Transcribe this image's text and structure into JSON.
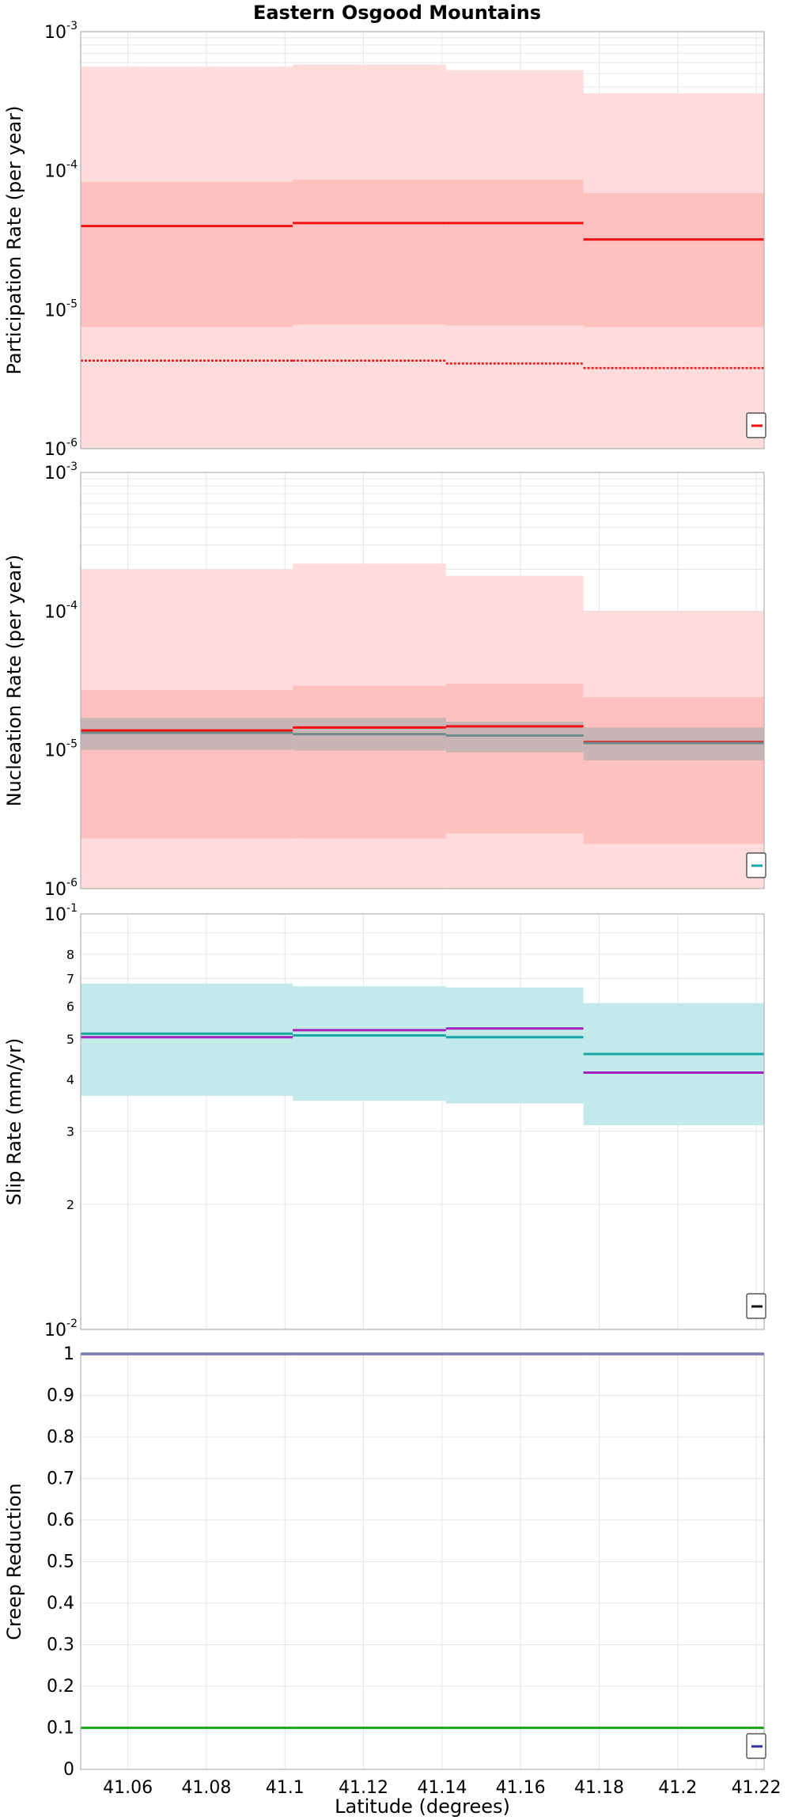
{
  "title": "Eastern Osgood Mountains",
  "xlabel": "Latitude (degrees)",
  "x_ticks": [
    "41.06",
    "41.08",
    "41.1",
    "41.12",
    "41.14",
    "41.16",
    "41.18",
    "41.2",
    "41.22"
  ],
  "colors": {
    "red": "#ee1111",
    "band_light": "#ffdcdc",
    "band_mid": "#ffc0c0",
    "band_gray": "#c8b4b4",
    "gray_line": "#6e8a8a",
    "teal": "#1aa6a6",
    "teal_band": "#c2eaea",
    "purple": "#a020c0",
    "blue": "#3030a0",
    "green": "#1aaa1a",
    "grid": "#e6e6e6"
  },
  "chart_data": [
    {
      "type": "line",
      "name": "participation",
      "title": "Eastern Osgood Mountains",
      "xlabel": "",
      "ylabel": "Participation Rate (per year)",
      "yscale": "log",
      "xlim": [
        41.048,
        41.222
      ],
      "ylim": [
        1e-06,
        0.001
      ],
      "y_tick_exponents": [
        "-3",
        "-4",
        "-5",
        "-6"
      ],
      "x_edges": [
        41.048,
        41.102,
        41.141,
        41.176,
        41.222
      ],
      "bands": [
        {
          "color": "band_light",
          "lower": [
            1e-06,
            1e-06,
            1e-06,
            1e-06
          ],
          "upper": [
            0.00056,
            0.00058,
            0.00053,
            0.00036
          ]
        },
        {
          "color": "band_mid",
          "lower": [
            7.5e-06,
            7.8e-06,
            7.7e-06,
            7.5e-06
          ],
          "upper": [
            8.3e-05,
            8.6e-05,
            8.6e-05,
            6.9e-05
          ]
        }
      ],
      "series": [
        {
          "color": "red",
          "style": "solid",
          "values": [
            4e-05,
            4.2e-05,
            4.2e-05,
            3.2e-05
          ]
        },
        {
          "color": "red",
          "style": "dotted",
          "values": [
            4.3e-06,
            4.3e-06,
            4.1e-06,
            3.8e-06
          ]
        }
      ],
      "legend": "bottom-right",
      "grid": true
    },
    {
      "type": "line",
      "name": "nucleation",
      "xlabel": "",
      "ylabel": "Nucleation Rate (per year)",
      "yscale": "log",
      "xlim": [
        41.048,
        41.222
      ],
      "ylim": [
        1e-06,
        0.001
      ],
      "y_tick_exponents": [
        "-3",
        "-4",
        "-5",
        "-6"
      ],
      "x_edges": [
        41.048,
        41.102,
        41.141,
        41.176,
        41.222
      ],
      "bands": [
        {
          "color": "band_light",
          "lower": [
            1e-06,
            1e-06,
            1e-06,
            1e-06
          ],
          "upper": [
            0.0002,
            0.00022,
            0.00018,
            0.0001
          ]
        },
        {
          "color": "band_mid",
          "lower": [
            2.3e-06,
            2.3e-06,
            2.5e-06,
            2.1e-06
          ],
          "upper": [
            2.7e-05,
            2.9e-05,
            3e-05,
            2.4e-05
          ]
        },
        {
          "color": "band_gray",
          "lower": [
            1e-05,
            9.9e-06,
            9.6e-06,
            8.4e-06
          ],
          "upper": [
            1.7e-05,
            1.7e-05,
            1.6e-05,
            1.45e-05
          ]
        }
      ],
      "series": [
        {
          "color": "red",
          "style": "solid",
          "values": [
            1.38e-05,
            1.45e-05,
            1.48e-05,
            1.14e-05
          ]
        },
        {
          "color": "gray_line",
          "style": "solid",
          "values": [
            1.33e-05,
            1.3e-05,
            1.27e-05,
            1.12e-05
          ]
        }
      ],
      "legend": "bottom-right",
      "grid": true
    },
    {
      "type": "line",
      "name": "slip",
      "xlabel": "",
      "ylabel": "Slip Rate (mm/yr)",
      "yscale": "log",
      "xlim": [
        41.048,
        41.222
      ],
      "ylim": [
        1,
        10
      ],
      "y_major_labels": [
        {
          "value": 10,
          "base": "10",
          "exp": "-1"
        },
        {
          "value": 1,
          "base": "10",
          "exp": "-2"
        }
      ],
      "y_minor_labels": [
        2,
        3,
        4,
        5,
        6,
        7,
        8
      ],
      "x_edges": [
        41.048,
        41.102,
        41.141,
        41.176,
        41.222
      ],
      "bands": [
        {
          "color": "teal_band",
          "lower": [
            3.65,
            3.55,
            3.5,
            3.1
          ],
          "upper": [
            6.8,
            6.7,
            6.65,
            6.1
          ]
        }
      ],
      "series": [
        {
          "color": "teal",
          "style": "solid",
          "values": [
            5.15,
            5.1,
            5.05,
            4.6
          ]
        },
        {
          "color": "purple",
          "style": "solid",
          "values": [
            5.05,
            5.25,
            5.3,
            4.15
          ]
        }
      ],
      "legend": "bottom-right",
      "grid": true
    },
    {
      "type": "line",
      "name": "creep",
      "xlabel": "Latitude (degrees)",
      "ylabel": "Creep Reduction",
      "yscale": "linear",
      "xlim": [
        41.048,
        41.222
      ],
      "ylim": [
        0,
        1
      ],
      "y_ticks": [
        "0",
        "0.1",
        "0.2",
        "0.3",
        "0.4",
        "0.5",
        "0.6",
        "0.7",
        "0.8",
        "0.9",
        "1"
      ],
      "x_edges": [
        41.048,
        41.102,
        41.141,
        41.176,
        41.222
      ],
      "bands": [],
      "series": [
        {
          "color": "blue",
          "style": "solid",
          "values": [
            1.0,
            1.0,
            1.0,
            1.0
          ]
        },
        {
          "color": "green",
          "style": "solid",
          "values": [
            0.1,
            0.1,
            0.1,
            0.1
          ]
        }
      ],
      "legend": "bottom-right",
      "grid": true
    }
  ]
}
